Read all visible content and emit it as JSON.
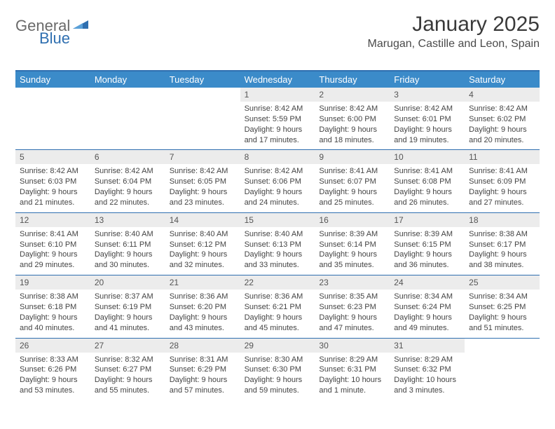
{
  "brand": {
    "text_general": "General",
    "text_blue": "Blue"
  },
  "title": "January 2025",
  "location": "Marugan, Castille and Leon, Spain",
  "colors": {
    "header_bg": "#3b8bc9",
    "border": "#2f6fb0",
    "daynum_bg": "#ececec",
    "text": "#333333"
  },
  "daynames": [
    "Sunday",
    "Monday",
    "Tuesday",
    "Wednesday",
    "Thursday",
    "Friday",
    "Saturday"
  ],
  "weeks": [
    [
      {
        "blank": true
      },
      {
        "blank": true
      },
      {
        "blank": true
      },
      {
        "day": "1",
        "sunrise": "Sunrise: 8:42 AM",
        "sunset": "Sunset: 5:59 PM",
        "daylight": "Daylight: 9 hours and 17 minutes."
      },
      {
        "day": "2",
        "sunrise": "Sunrise: 8:42 AM",
        "sunset": "Sunset: 6:00 PM",
        "daylight": "Daylight: 9 hours and 18 minutes."
      },
      {
        "day": "3",
        "sunrise": "Sunrise: 8:42 AM",
        "sunset": "Sunset: 6:01 PM",
        "daylight": "Daylight: 9 hours and 19 minutes."
      },
      {
        "day": "4",
        "sunrise": "Sunrise: 8:42 AM",
        "sunset": "Sunset: 6:02 PM",
        "daylight": "Daylight: 9 hours and 20 minutes."
      }
    ],
    [
      {
        "day": "5",
        "sunrise": "Sunrise: 8:42 AM",
        "sunset": "Sunset: 6:03 PM",
        "daylight": "Daylight: 9 hours and 21 minutes."
      },
      {
        "day": "6",
        "sunrise": "Sunrise: 8:42 AM",
        "sunset": "Sunset: 6:04 PM",
        "daylight": "Daylight: 9 hours and 22 minutes."
      },
      {
        "day": "7",
        "sunrise": "Sunrise: 8:42 AM",
        "sunset": "Sunset: 6:05 PM",
        "daylight": "Daylight: 9 hours and 23 minutes."
      },
      {
        "day": "8",
        "sunrise": "Sunrise: 8:42 AM",
        "sunset": "Sunset: 6:06 PM",
        "daylight": "Daylight: 9 hours and 24 minutes."
      },
      {
        "day": "9",
        "sunrise": "Sunrise: 8:41 AM",
        "sunset": "Sunset: 6:07 PM",
        "daylight": "Daylight: 9 hours and 25 minutes."
      },
      {
        "day": "10",
        "sunrise": "Sunrise: 8:41 AM",
        "sunset": "Sunset: 6:08 PM",
        "daylight": "Daylight: 9 hours and 26 minutes."
      },
      {
        "day": "11",
        "sunrise": "Sunrise: 8:41 AM",
        "sunset": "Sunset: 6:09 PM",
        "daylight": "Daylight: 9 hours and 27 minutes."
      }
    ],
    [
      {
        "day": "12",
        "sunrise": "Sunrise: 8:41 AM",
        "sunset": "Sunset: 6:10 PM",
        "daylight": "Daylight: 9 hours and 29 minutes."
      },
      {
        "day": "13",
        "sunrise": "Sunrise: 8:40 AM",
        "sunset": "Sunset: 6:11 PM",
        "daylight": "Daylight: 9 hours and 30 minutes."
      },
      {
        "day": "14",
        "sunrise": "Sunrise: 8:40 AM",
        "sunset": "Sunset: 6:12 PM",
        "daylight": "Daylight: 9 hours and 32 minutes."
      },
      {
        "day": "15",
        "sunrise": "Sunrise: 8:40 AM",
        "sunset": "Sunset: 6:13 PM",
        "daylight": "Daylight: 9 hours and 33 minutes."
      },
      {
        "day": "16",
        "sunrise": "Sunrise: 8:39 AM",
        "sunset": "Sunset: 6:14 PM",
        "daylight": "Daylight: 9 hours and 35 minutes."
      },
      {
        "day": "17",
        "sunrise": "Sunrise: 8:39 AM",
        "sunset": "Sunset: 6:15 PM",
        "daylight": "Daylight: 9 hours and 36 minutes."
      },
      {
        "day": "18",
        "sunrise": "Sunrise: 8:38 AM",
        "sunset": "Sunset: 6:17 PM",
        "daylight": "Daylight: 9 hours and 38 minutes."
      }
    ],
    [
      {
        "day": "19",
        "sunrise": "Sunrise: 8:38 AM",
        "sunset": "Sunset: 6:18 PM",
        "daylight": "Daylight: 9 hours and 40 minutes."
      },
      {
        "day": "20",
        "sunrise": "Sunrise: 8:37 AM",
        "sunset": "Sunset: 6:19 PM",
        "daylight": "Daylight: 9 hours and 41 minutes."
      },
      {
        "day": "21",
        "sunrise": "Sunrise: 8:36 AM",
        "sunset": "Sunset: 6:20 PM",
        "daylight": "Daylight: 9 hours and 43 minutes."
      },
      {
        "day": "22",
        "sunrise": "Sunrise: 8:36 AM",
        "sunset": "Sunset: 6:21 PM",
        "daylight": "Daylight: 9 hours and 45 minutes."
      },
      {
        "day": "23",
        "sunrise": "Sunrise: 8:35 AM",
        "sunset": "Sunset: 6:23 PM",
        "daylight": "Daylight: 9 hours and 47 minutes."
      },
      {
        "day": "24",
        "sunrise": "Sunrise: 8:34 AM",
        "sunset": "Sunset: 6:24 PM",
        "daylight": "Daylight: 9 hours and 49 minutes."
      },
      {
        "day": "25",
        "sunrise": "Sunrise: 8:34 AM",
        "sunset": "Sunset: 6:25 PM",
        "daylight": "Daylight: 9 hours and 51 minutes."
      }
    ],
    [
      {
        "day": "26",
        "sunrise": "Sunrise: 8:33 AM",
        "sunset": "Sunset: 6:26 PM",
        "daylight": "Daylight: 9 hours and 53 minutes."
      },
      {
        "day": "27",
        "sunrise": "Sunrise: 8:32 AM",
        "sunset": "Sunset: 6:27 PM",
        "daylight": "Daylight: 9 hours and 55 minutes."
      },
      {
        "day": "28",
        "sunrise": "Sunrise: 8:31 AM",
        "sunset": "Sunset: 6:29 PM",
        "daylight": "Daylight: 9 hours and 57 minutes."
      },
      {
        "day": "29",
        "sunrise": "Sunrise: 8:30 AM",
        "sunset": "Sunset: 6:30 PM",
        "daylight": "Daylight: 9 hours and 59 minutes."
      },
      {
        "day": "30",
        "sunrise": "Sunrise: 8:29 AM",
        "sunset": "Sunset: 6:31 PM",
        "daylight": "Daylight: 10 hours and 1 minute."
      },
      {
        "day": "31",
        "sunrise": "Sunrise: 8:29 AM",
        "sunset": "Sunset: 6:32 PM",
        "daylight": "Daylight: 10 hours and 3 minutes."
      },
      {
        "blank": true
      }
    ]
  ]
}
